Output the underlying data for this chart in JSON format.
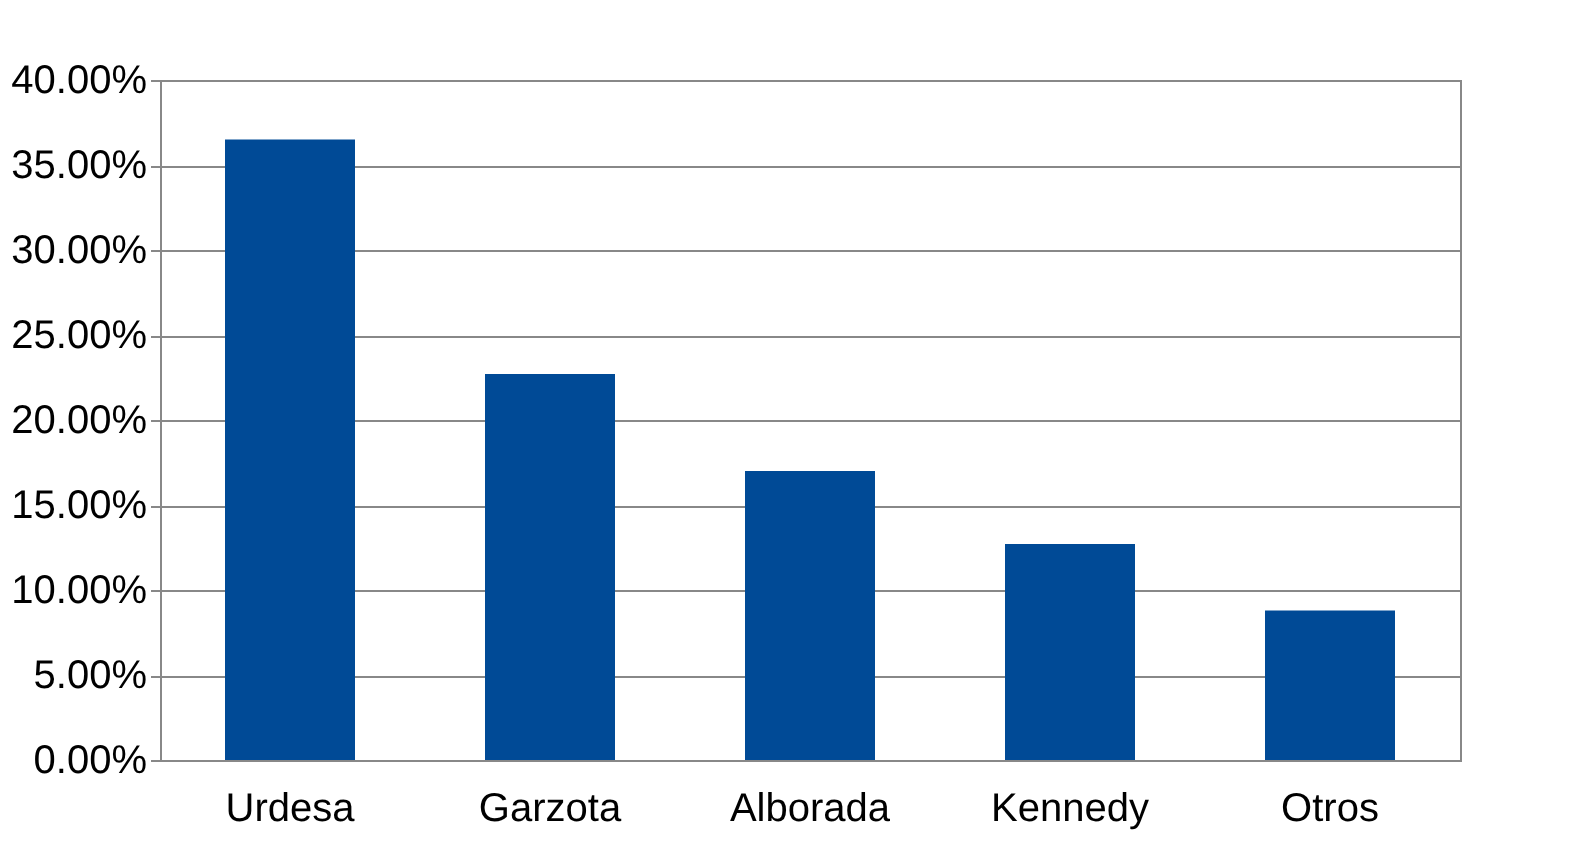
{
  "chart_data": {
    "type": "bar",
    "categories": [
      "Urdesa",
      "Garzota",
      "Alborada",
      "Kennedy",
      "Otros"
    ],
    "values": [
      36.5,
      22.7,
      17.0,
      12.7,
      8.8
    ],
    "color": "#004a96",
    "ylim": [
      0,
      40
    ],
    "yticks": [
      {
        "value": 0,
        "label": "0.00%"
      },
      {
        "value": 5,
        "label": "5.00%"
      },
      {
        "value": 10,
        "label": "10.00%"
      },
      {
        "value": 15,
        "label": "15.00%"
      },
      {
        "value": 20,
        "label": "20.00%"
      },
      {
        "value": 25,
        "label": "25.00%"
      },
      {
        "value": 30,
        "label": "30.00%"
      },
      {
        "value": 35,
        "label": "35.00%"
      },
      {
        "value": 40,
        "label": "40.00%"
      }
    ],
    "grid": "y"
  }
}
